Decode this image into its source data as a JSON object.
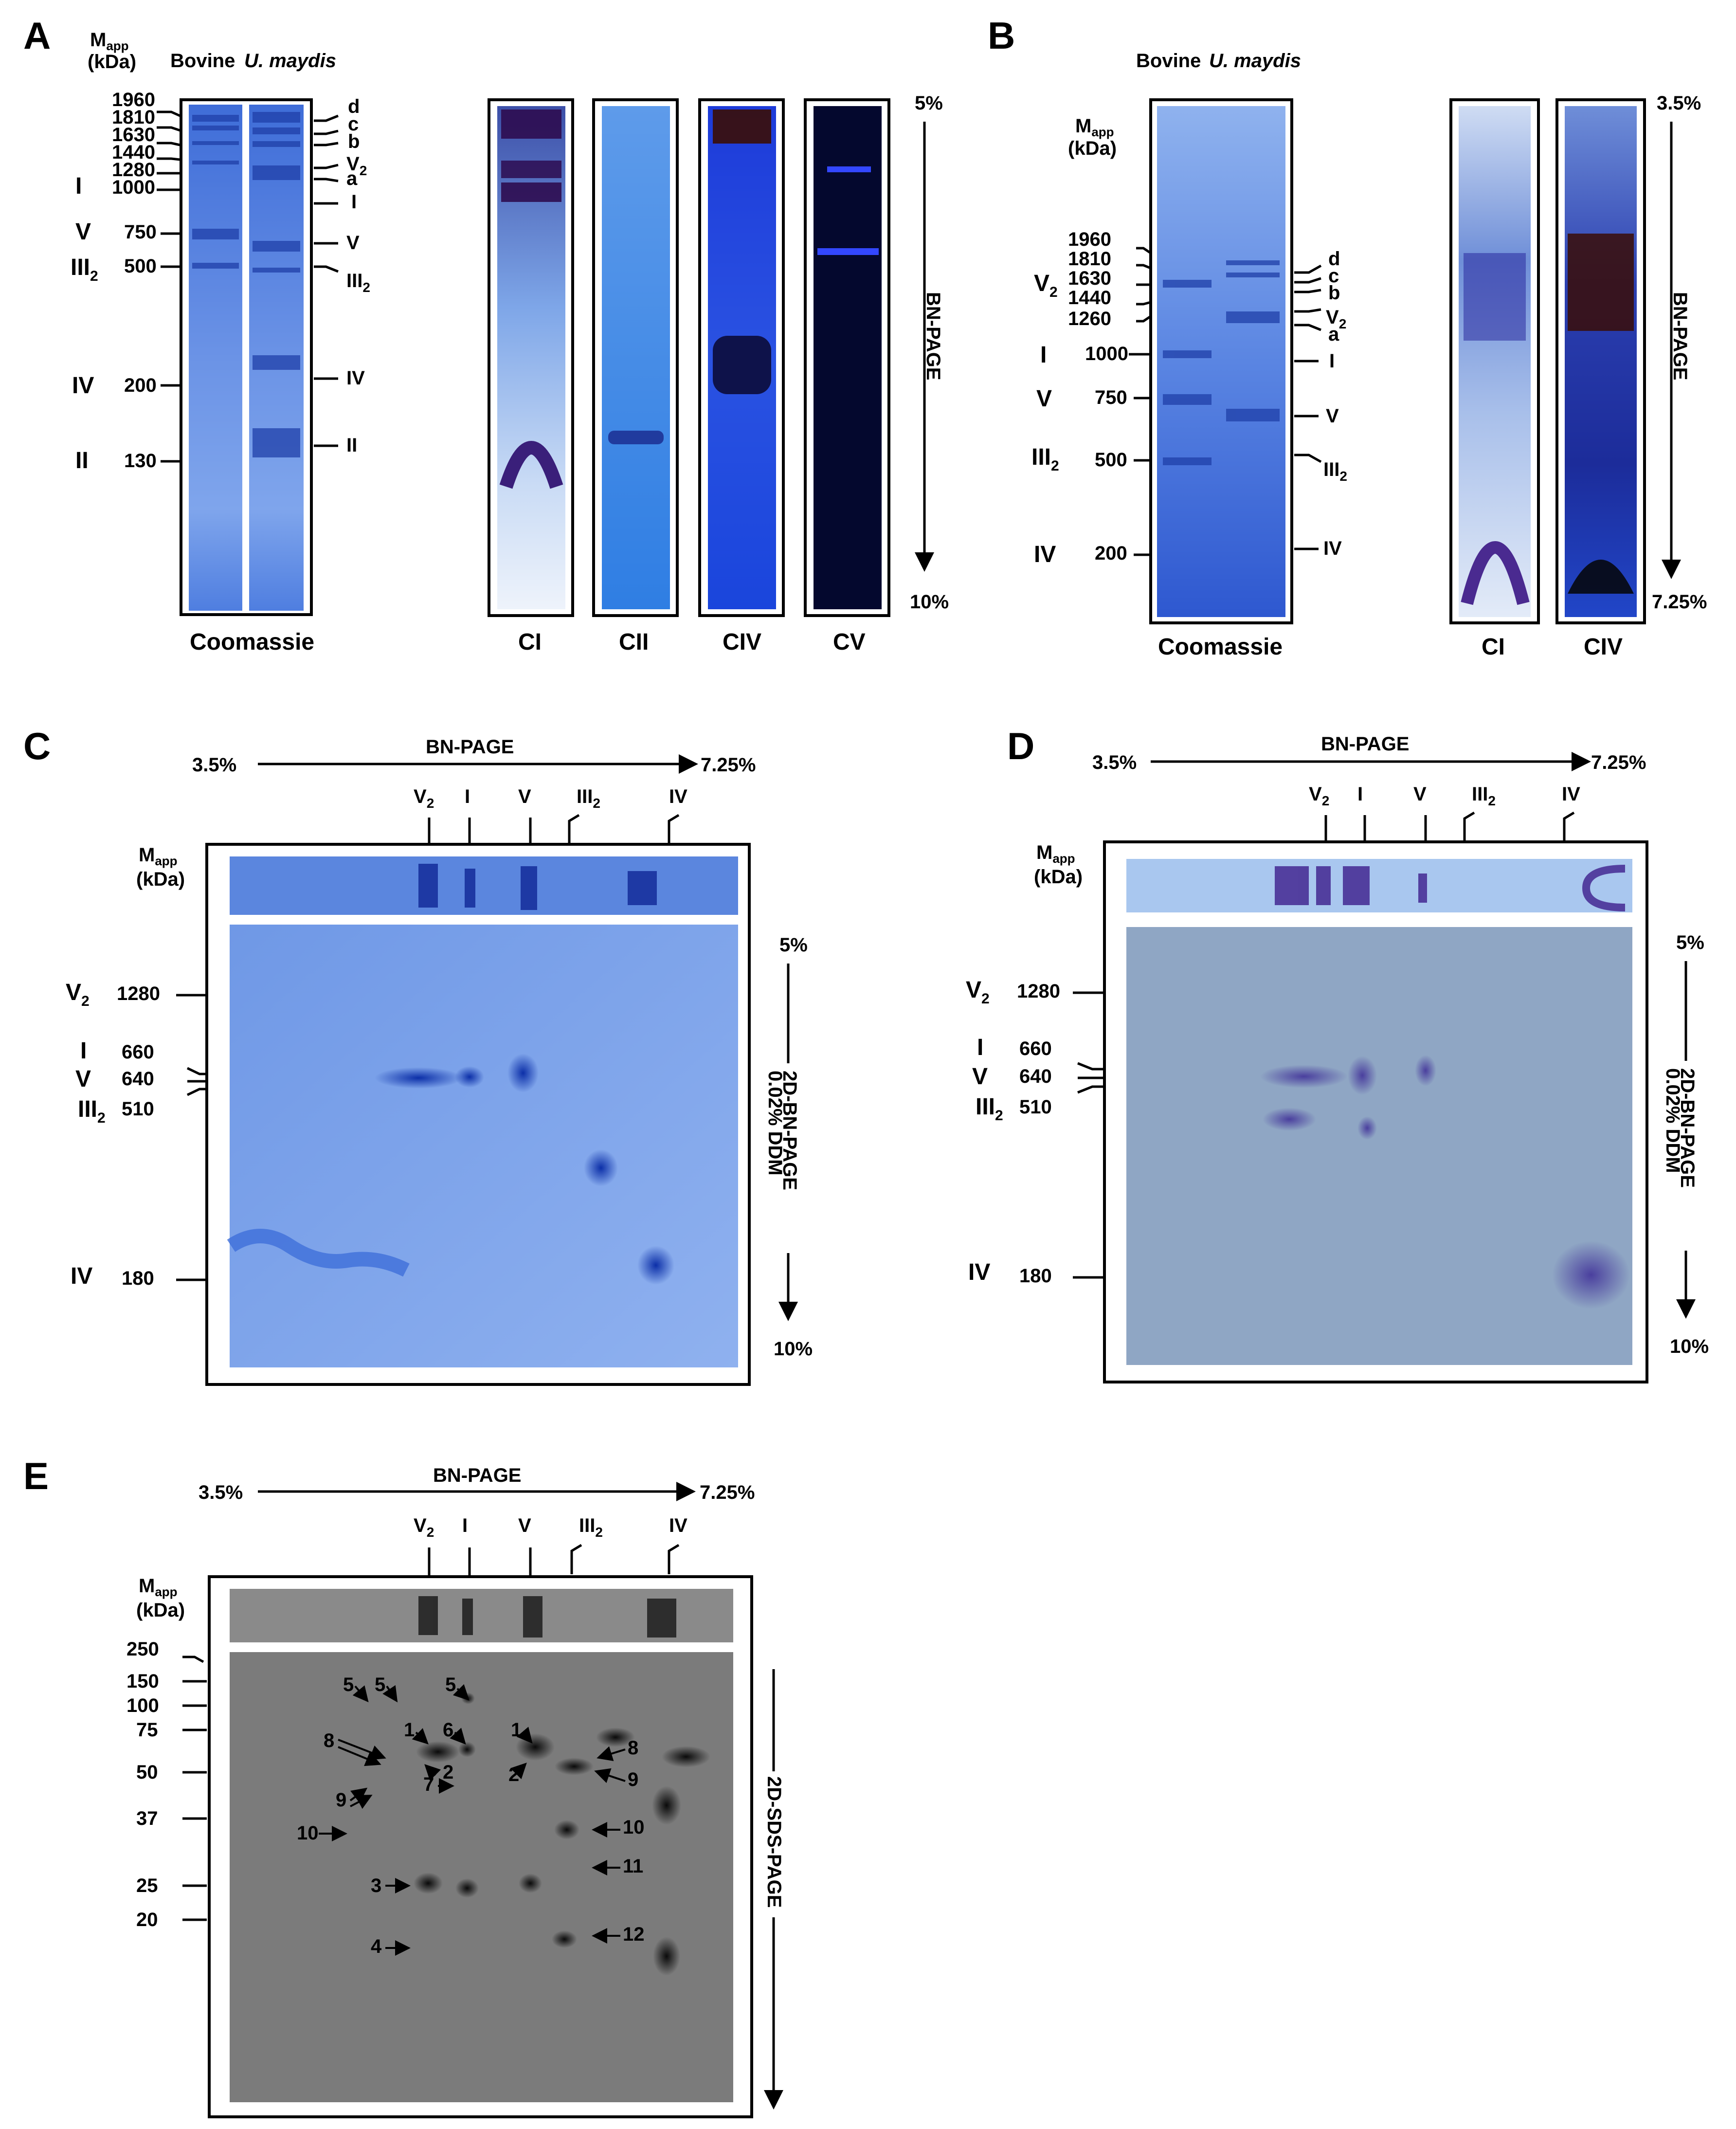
{
  "colors": {
    "coomassie": "#3f6dd8",
    "coomassie_light": "#9ec0f3",
    "ci_stain": "#2d0c50",
    "civ_stain": "#3a0d06",
    "cv_bg": "#04082e",
    "sds_gray": "#7b7b7b",
    "twoD_gray": "#8fa6c4"
  },
  "panelA": {
    "label": "A",
    "mapp_main": "M",
    "mapp_sub": "app",
    "kda": "(kDa)",
    "lane_bovine": "Bovine",
    "lane_umaydis": "U. maydis",
    "markers": [
      "1960",
      "1810",
      "1630",
      "1440",
      "1280",
      "1000",
      "750",
      "500",
      "200",
      "130"
    ],
    "left_complexes": [
      "I",
      "V",
      "III",
      "IV",
      "II"
    ],
    "left_sub": "2",
    "right_labels": [
      "d",
      "c",
      "b",
      "V",
      "a",
      "I",
      "V",
      "III",
      "IV",
      "II"
    ],
    "right_sub": "2",
    "bottom_coomassie": "Coomassie",
    "stain_labels": [
      "CI",
      "CII",
      "CIV",
      "CV"
    ],
    "gradient_top": "5%",
    "gradient_bottom": "10%",
    "gradient_label": "BN-PAGE"
  },
  "panelB": {
    "label": "B",
    "lane_bovine": "Bovine",
    "lane_umaydis": "U. maydis",
    "mapp_main": "M",
    "mapp_sub": "app",
    "kda": "(kDa)",
    "markers": [
      "1960",
      "1810",
      "1630",
      "1440",
      "1260",
      "1000",
      "750",
      "500",
      "200"
    ],
    "left_complexes": [
      "V",
      "I",
      "V",
      "III",
      "IV"
    ],
    "right_labels": [
      "d",
      "c",
      "b",
      "V",
      "a",
      "I",
      "V",
      "III",
      "IV"
    ],
    "sub": "2",
    "bottom_coomassie": "Coomassie",
    "stain_labels": [
      "CI",
      "CIV"
    ],
    "gradient_top": "3.5%",
    "gradient_bottom": "7.25%",
    "gradient_label": "BN-PAGE"
  },
  "panelC": {
    "label": "C",
    "bn_left": "3.5%",
    "bn_right": "7.25%",
    "bn_label": "BN-PAGE",
    "top_complexes": [
      "V",
      "I",
      "V",
      "III",
      "IV"
    ],
    "sub": "2",
    "mapp_main": "M",
    "mapp_sub": "app",
    "kda": "(kDa)",
    "left_complexes": [
      "V",
      "I",
      "V",
      "III",
      "IV"
    ],
    "left_values": [
      "1280",
      "660",
      "640",
      "510",
      "180"
    ],
    "gradient_top": "5%",
    "gradient_bottom": "10%",
    "vertical_label": "2D-BN-PAGE",
    "vertical_label2": "0.02% DDM"
  },
  "panelD": {
    "label": "D",
    "bn_left": "3.5%",
    "bn_right": "7.25%",
    "bn_label": "BN-PAGE",
    "top_complexes": [
      "V",
      "I",
      "V",
      "III",
      "IV"
    ],
    "sub": "2",
    "mapp_main": "M",
    "mapp_sub": "app",
    "kda": "(kDa)",
    "left_complexes": [
      "V",
      "I",
      "V",
      "III",
      "IV"
    ],
    "left_values": [
      "1280",
      "660",
      "640",
      "510",
      "180"
    ],
    "gradient_top": "5%",
    "gradient_bottom": "10%",
    "vertical_label": "2D-BN-PAGE",
    "vertical_label2": "0.02% DDM"
  },
  "panelE": {
    "label": "E",
    "bn_left": "3.5%",
    "bn_right": "7.25%",
    "bn_label": "BN-PAGE",
    "top_complexes": [
      "V",
      "I",
      "V",
      "III",
      "IV"
    ],
    "sub": "2",
    "mapp_main": "M",
    "mapp_sub": "app",
    "kda": "(kDa)",
    "markers": [
      "250",
      "150",
      "100",
      "75",
      "50",
      "37",
      "25",
      "20"
    ],
    "spot_labels": [
      "5",
      "5",
      "5",
      "1",
      "6",
      "1",
      "8",
      "8",
      "2",
      "2",
      "7",
      "9",
      "9",
      "10",
      "10",
      "11",
      "3",
      "4",
      "12"
    ],
    "vertical_label": "2D-SDS-PAGE"
  }
}
